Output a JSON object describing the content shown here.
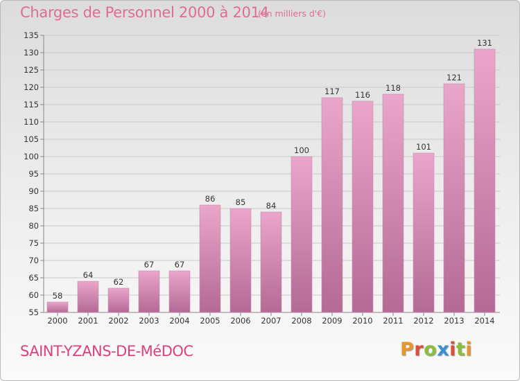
{
  "title": "Charges de Personnel 2000 à 2014",
  "unit_note": "(en milliers d'€)",
  "commune": "SAINT-YZANS-DE-MéDOC",
  "logo": {
    "text": "Proxiti"
  },
  "colors": {
    "title": "#e06b96",
    "commune": "#d9437d",
    "bar_top": "#eaa6ca",
    "bar_bottom": "#b36a95"
  },
  "chart_data": {
    "type": "bar",
    "title": "Charges de Personnel 2000 à 2014",
    "categories": [
      "2000",
      "2001",
      "2002",
      "2003",
      "2004",
      "2005",
      "2006",
      "2007",
      "2008",
      "2009",
      "2010",
      "2011",
      "2012",
      "2013",
      "2014"
    ],
    "values": [
      58,
      64,
      62,
      67,
      67,
      86,
      85,
      84,
      100,
      117,
      116,
      118,
      101,
      121,
      131
    ],
    "ylim": [
      55,
      135
    ],
    "yticks": [
      55,
      60,
      65,
      70,
      75,
      80,
      85,
      90,
      95,
      100,
      105,
      110,
      115,
      120,
      125,
      130,
      135
    ],
    "grid": true,
    "legend": "none"
  }
}
